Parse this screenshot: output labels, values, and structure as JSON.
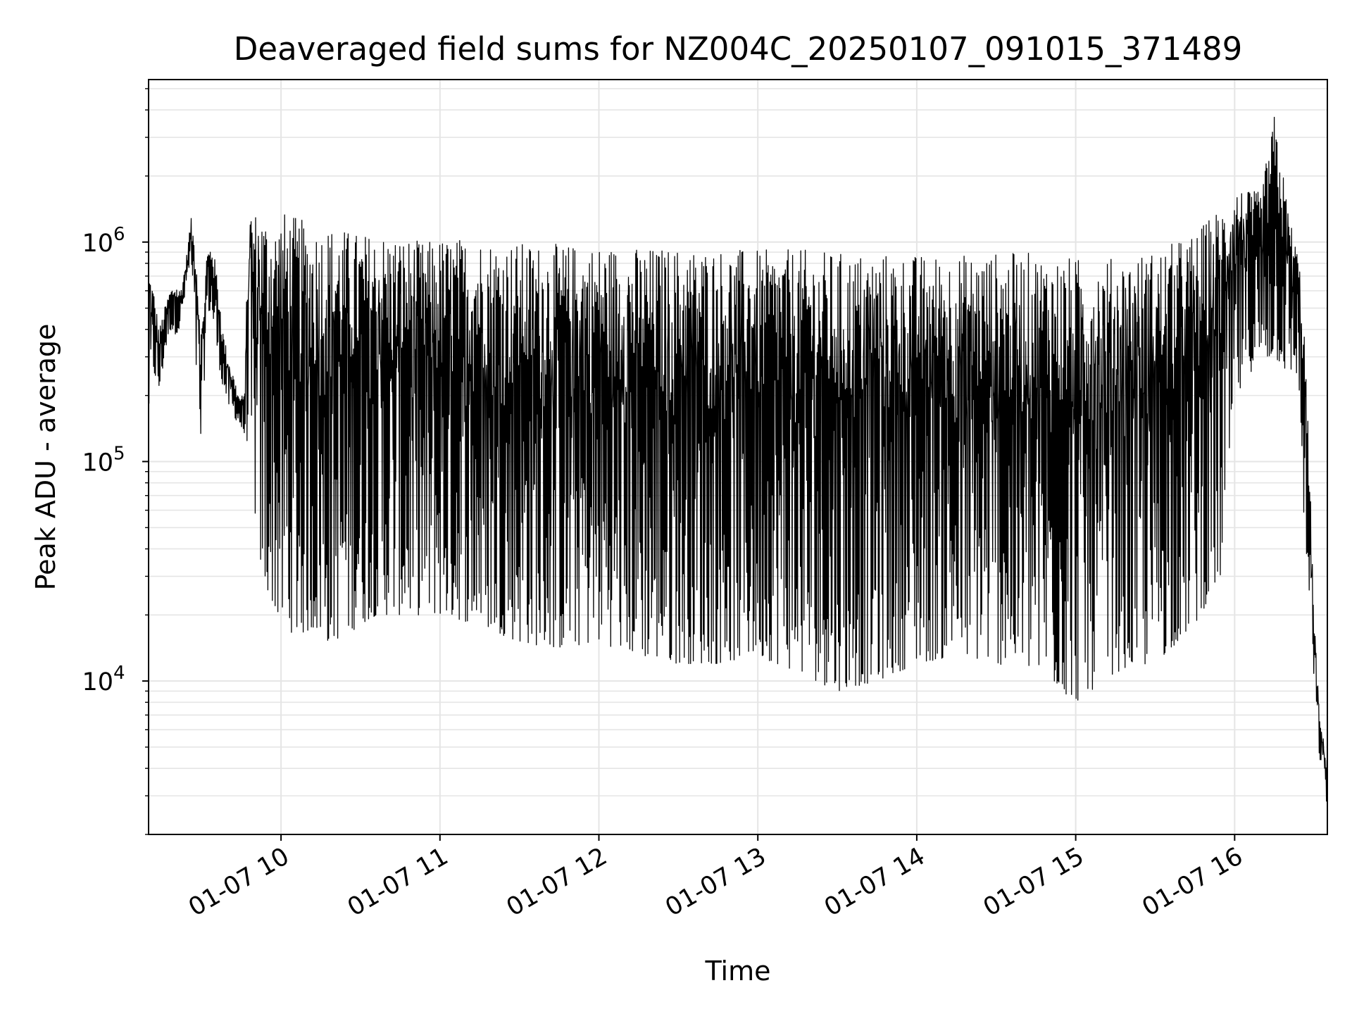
{
  "chart_data": {
    "type": "line",
    "title": "Deaveraged field sums for NZ004C_20250107_091015_371489",
    "xlabel": "Time",
    "ylabel": "Peak ADU - average",
    "yscale": "log",
    "xlim": [
      "2025-01-07 09:10",
      "2025-01-07 16:35"
    ],
    "ylim": [
      2000,
      5500000
    ],
    "x_ticks": [
      "01-07 10",
      "01-07 11",
      "01-07 12",
      "01-07 13",
      "01-07 14",
      "01-07 15",
      "01-07 16"
    ],
    "x_tick_times": [
      "2025-01-07 10:00",
      "2025-01-07 11:00",
      "2025-01-07 12:00",
      "2025-01-07 13:00",
      "2025-01-07 14:00",
      "2025-01-07 15:00",
      "2025-01-07 16:00"
    ],
    "y_ticks": [
      {
        "value": 10000,
        "base": "10",
        "exp": "4"
      },
      {
        "value": 100000,
        "base": "10",
        "exp": "5"
      },
      {
        "value": 1000000,
        "base": "10",
        "exp": "6"
      }
    ],
    "grid": true,
    "line_color": "#000000",
    "grid_color": "#e5e5e5",
    "series": [
      {
        "x": [
          "2025-01-07 09:10",
          "2025-01-07 09:12",
          "2025-01-07 09:14",
          "2025-01-07 09:16",
          "2025-01-07 09:18",
          "2025-01-07 09:20",
          "2025-01-07 09:22",
          "2025-01-07 09:24",
          "2025-01-07 09:26",
          "2025-01-07 09:28",
          "2025-01-07 09:30",
          "2025-01-07 09:32",
          "2025-01-07 09:34",
          "2025-01-07 09:36",
          "2025-01-07 09:38",
          "2025-01-07 09:40",
          "2025-01-07 09:42",
          "2025-01-07 09:44",
          "2025-01-07 09:46",
          "2025-01-07 09:48",
          "2025-01-07 09:50",
          "2025-01-07 09:52",
          "2025-01-07 09:54",
          "2025-01-07 09:56",
          "2025-01-07 09:58",
          "2025-01-07 10:00",
          "2025-01-07 10:06",
          "2025-01-07 10:12",
          "2025-01-07 10:18",
          "2025-01-07 10:24",
          "2025-01-07 10:30",
          "2025-01-07 10:36",
          "2025-01-07 10:42",
          "2025-01-07 10:48",
          "2025-01-07 10:54",
          "2025-01-07 11:00",
          "2025-01-07 11:15",
          "2025-01-07 11:30",
          "2025-01-07 11:45",
          "2025-01-07 12:00",
          "2025-01-07 12:15",
          "2025-01-07 12:30",
          "2025-01-07 12:45",
          "2025-01-07 13:00",
          "2025-01-07 13:15",
          "2025-01-07 13:30",
          "2025-01-07 13:45",
          "2025-01-07 14:00",
          "2025-01-07 14:15",
          "2025-01-07 14:30",
          "2025-01-07 14:45",
          "2025-01-07 15:00",
          "2025-01-07 15:15",
          "2025-01-07 15:30",
          "2025-01-07 15:45",
          "2025-01-07 15:55",
          "2025-01-07 16:00",
          "2025-01-07 16:05",
          "2025-01-07 16:10",
          "2025-01-07 16:15",
          "2025-01-07 16:20",
          "2025-01-07 16:22",
          "2025-01-07 16:24",
          "2025-01-07 16:26",
          "2025-01-07 16:28",
          "2025-01-07 16:30",
          "2025-01-07 16:32",
          "2025-01-07 16:34",
          "2025-01-07 16:35"
        ],
        "max": [
          800000,
          600000,
          400000,
          500000,
          600000,
          650000,
          600000,
          800000,
          1300000,
          950000,
          400000,
          900000,
          1000000,
          700000,
          400000,
          300000,
          250000,
          200000,
          200000,
          1500000,
          1400000,
          1400000,
          1350000,
          1300000,
          1250000,
          1400000,
          1300000,
          1200000,
          1200000,
          1150000,
          1100000,
          1100000,
          1100000,
          1050000,
          1000000,
          1050000,
          1050000,
          1000000,
          980000,
          980000,
          950000,
          950000,
          950000,
          920000,
          930000,
          900000,
          900000,
          880000,
          880000,
          900000,
          900000,
          850000,
          850000,
          920000,
          1100000,
          1500000,
          1800000,
          1700000,
          1700000,
          3800000,
          1500000,
          1100000,
          900000,
          500000,
          120000,
          20000,
          7000,
          5000,
          4500
        ],
        "min": [
          150000,
          250000,
          200000,
          300000,
          400000,
          380000,
          400000,
          600000,
          800000,
          250000,
          100000,
          500000,
          450000,
          300000,
          220000,
          180000,
          160000,
          150000,
          130000,
          120000,
          60000,
          35000,
          25000,
          25000,
          20000,
          18000,
          16000,
          17000,
          15000,
          16000,
          18000,
          20000,
          20000,
          20000,
          20000,
          20000,
          18000,
          15000,
          14000,
          15000,
          13000,
          12000,
          12000,
          13000,
          11000,
          9000,
          10000,
          12000,
          13000,
          12000,
          11000,
          8000,
          11000,
          12000,
          18000,
          30000,
          180000,
          250000,
          280000,
          300000,
          250000,
          250000,
          250000,
          60000,
          20000,
          10000,
          4500,
          3500,
          2500
        ]
      }
    ]
  }
}
